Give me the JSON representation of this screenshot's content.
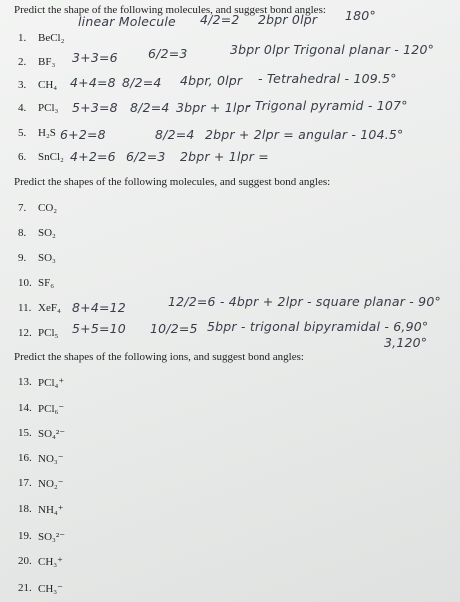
{
  "sections": [
    {
      "heading": "Predict the shape of the following molecules, and suggest bond angles:",
      "items": [
        {
          "number": "1.",
          "formula": "BeCl₂",
          "handwriting": [
            "linear Molecule",
            "4/2=2",
            "2bpr 0lpr",
            "180°"
          ]
        },
        {
          "number": "2.",
          "formula": "BF₃",
          "handwriting": [
            "3+3=6",
            "6/2=3",
            "3bpr 0lpr Trigonal planar - 120°"
          ]
        },
        {
          "number": "3.",
          "formula": "CH₄",
          "handwriting": [
            "4+4=8",
            "8/2=4",
            "4bpr, 0lpr",
            "- Tetrahedral - 109.5°"
          ]
        },
        {
          "number": "4.",
          "formula": "PCl₃",
          "handwriting": [
            "5+3=8",
            "8/2=4",
            "3bpr + 1lpr",
            "- Trigonal pyramid - 107°"
          ]
        },
        {
          "number": "5.",
          "formula": "H₂S",
          "handwriting": [
            "6+2=8",
            "8/2=4",
            "2bpr + 2lpr = angular - 104.5°"
          ]
        },
        {
          "number": "6.",
          "formula": "SnCl₂",
          "handwriting": [
            "4+2=6",
            "6/2=3",
            "2bpr + 1lpr ="
          ]
        }
      ]
    },
    {
      "heading": "Predict the shapes of the following molecules, and suggest bond angles:",
      "items": [
        {
          "number": "7.",
          "formula": "CO₂"
        },
        {
          "number": "8.",
          "formula": "SO₂"
        },
        {
          "number": "9.",
          "formula": "SO₃"
        },
        {
          "number": "10.",
          "formula": "SF₆"
        },
        {
          "number": "11.",
          "formula": "XeF₄",
          "handwriting": [
            "8+4=12",
            "12/2=6 - 4bpr + 2lpr - square planar - 90°"
          ]
        },
        {
          "number": "12.",
          "formula": "PCl₅",
          "handwriting": [
            "5+5=10",
            "10/2=5",
            "5bpr - trigonal bipyramidal - 6,90°",
            "3,120°"
          ]
        }
      ]
    },
    {
      "heading": "Predict the shapes of the following ions, and suggest bond angles:",
      "items": [
        {
          "number": "13.",
          "formula": "PCl₄⁺"
        },
        {
          "number": "14.",
          "formula": "PCl₆⁻"
        },
        {
          "number": "15.",
          "formula": "SO₄²⁻"
        },
        {
          "number": "16.",
          "formula": "NO₃⁻"
        },
        {
          "number": "17.",
          "formula": "NO₂⁻"
        },
        {
          "number": "18.",
          "formula": "NH₄⁺"
        },
        {
          "number": "19.",
          "formula": "SO₃²⁻"
        },
        {
          "number": "20.",
          "formula": "CH₃⁺"
        },
        {
          "number": "21.",
          "formula": "CH₃⁻"
        }
      ]
    }
  ]
}
